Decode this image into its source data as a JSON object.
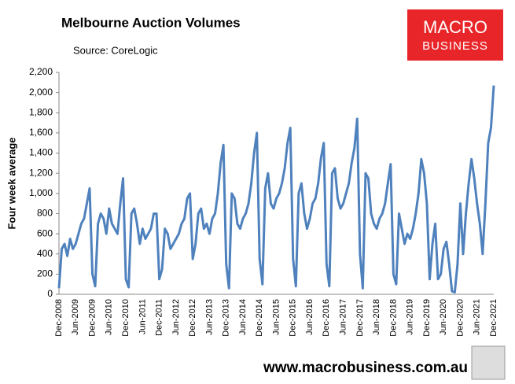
{
  "chart_data": {
    "type": "line",
    "title": "Melbourne Auction Volumes",
    "subtitle": "Source: CoreLogic",
    "y_label": "Four week average",
    "footer": "www.macrobusiness.com.au",
    "logo": [
      "MACRO",
      "BUSINESS"
    ],
    "color": "#4f81bd",
    "grid": false,
    "ylim": [
      0,
      2200
    ],
    "yticks": [
      0,
      200,
      400,
      600,
      800,
      {
        "value": 1000,
        "label": "1,000"
      },
      {
        "value": 1200,
        "label": "1,200"
      },
      {
        "value": 1400,
        "label": "1,400"
      },
      {
        "value": 1600,
        "label": "1,600"
      },
      {
        "value": 1800,
        "label": "1,800"
      },
      {
        "value": 2000,
        "label": "2,000"
      },
      {
        "value": 2200,
        "label": "2,200"
      }
    ],
    "categories": [
      "Dec-2008",
      null,
      null,
      null,
      null,
      null,
      "Jun-2009",
      null,
      null,
      null,
      null,
      null,
      "Dec-2009",
      null,
      null,
      null,
      null,
      null,
      "Jun-2010",
      null,
      null,
      null,
      null,
      null,
      "Dec-2010",
      null,
      null,
      null,
      null,
      null,
      "Jun-2011",
      null,
      null,
      null,
      null,
      null,
      "Dec-2011",
      null,
      null,
      null,
      null,
      null,
      "Jun-2012",
      null,
      null,
      null,
      null,
      null,
      "Dec-2012",
      null,
      null,
      null,
      null,
      null,
      "Jun-2013",
      null,
      null,
      null,
      null,
      null,
      "Dec-2013",
      null,
      null,
      null,
      null,
      null,
      "Jun-2014",
      null,
      null,
      null,
      null,
      null,
      "Dec-2014",
      null,
      null,
      null,
      null,
      null,
      "Jun-2015",
      null,
      null,
      null,
      null,
      null,
      "Dec-2015",
      null,
      null,
      null,
      null,
      null,
      "Jun-2016",
      null,
      null,
      null,
      null,
      null,
      "Dec-2016",
      null,
      null,
      null,
      null,
      null,
      "Jun-2017",
      null,
      null,
      null,
      null,
      null,
      "Dec-2017",
      null,
      null,
      null,
      null,
      null,
      "Jun-2018",
      null,
      null,
      null,
      null,
      null,
      "Dec-2018",
      null,
      null,
      null,
      null,
      null,
      "Jun-2019",
      null,
      null,
      null,
      null,
      null,
      "Dec-2019",
      null,
      null,
      null,
      null,
      null,
      "Jun-2020",
      null,
      null,
      null,
      null,
      null,
      "Dec-2020",
      null,
      null,
      null,
      null,
      null,
      "Jun-2021",
      null,
      null,
      null,
      null,
      null,
      "Dec-2021"
    ],
    "values": [
      60,
      450,
      500,
      380,
      550,
      450,
      500,
      600,
      700,
      750,
      900,
      1050,
      200,
      80,
      700,
      800,
      750,
      600,
      850,
      700,
      650,
      600,
      900,
      1150,
      150,
      70,
      800,
      850,
      700,
      500,
      650,
      550,
      600,
      650,
      800,
      800,
      150,
      250,
      650,
      600,
      450,
      500,
      550,
      600,
      700,
      750,
      950,
      1000,
      350,
      500,
      800,
      850,
      650,
      700,
      600,
      750,
      800,
      1000,
      1300,
      1480,
      300,
      60,
      1000,
      950,
      700,
      650,
      750,
      800,
      900,
      1100,
      1400,
      1600,
      350,
      100,
      1050,
      1200,
      900,
      850,
      950,
      1000,
      1100,
      1250,
      1500,
      1650,
      350,
      80,
      1000,
      1100,
      800,
      650,
      750,
      900,
      950,
      1100,
      1350,
      1500,
      300,
      80,
      1200,
      1250,
      950,
      850,
      900,
      1000,
      1100,
      1300,
      1450,
      1740,
      400,
      60,
      1200,
      1150,
      800,
      700,
      650,
      750,
      800,
      900,
      1100,
      1290,
      200,
      100,
      800,
      650,
      500,
      600,
      550,
      650,
      800,
      1000,
      1340,
      1200,
      900,
      150,
      500,
      700,
      150,
      200,
      450,
      520,
      300,
      30,
      20,
      300,
      900,
      400,
      800,
      1100,
      1340,
      1150,
      900,
      700,
      400,
      900,
      1500,
      1650,
      2070
    ]
  }
}
